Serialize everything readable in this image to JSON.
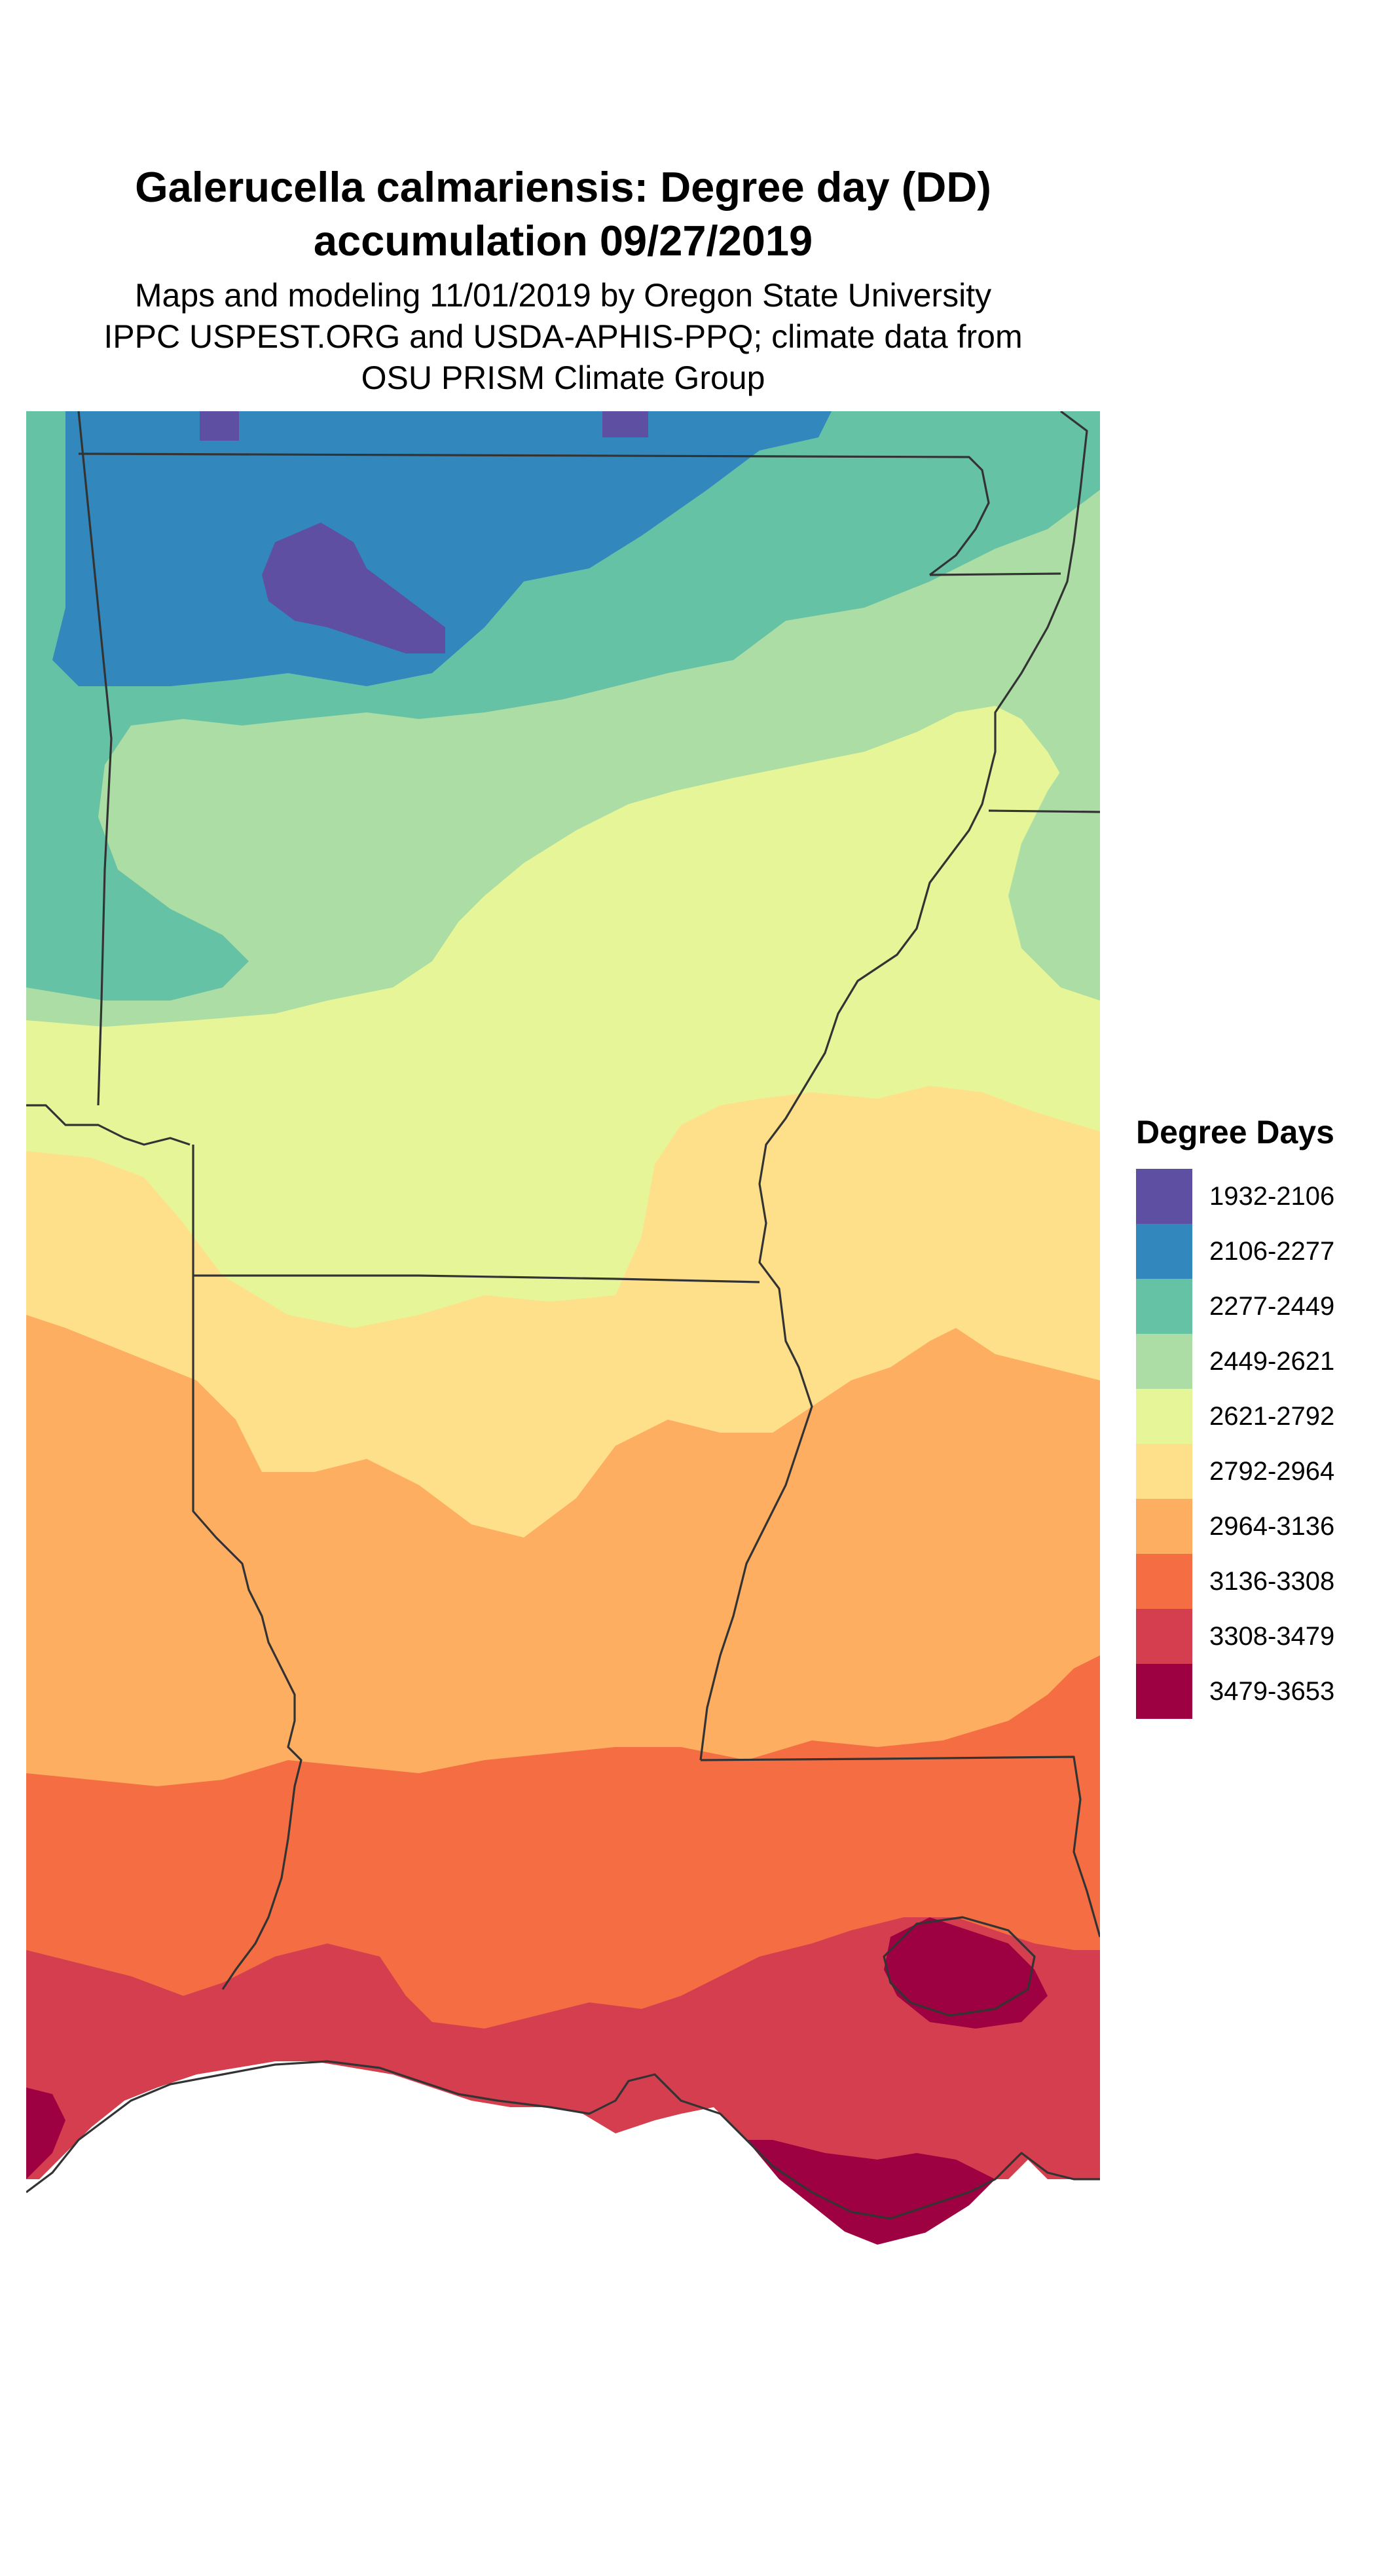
{
  "title": {
    "line1": "Galerucella calmariensis: Degree day (DD)",
    "line2": "accumulation 09/27/2019"
  },
  "subtitle": {
    "line1": "Maps and modeling 11/01/2019 by Oregon State University",
    "line2": "IPPC USPEST.ORG and USDA-APHIS-PPQ; climate data from",
    "line3": "OSU PRISM Climate Group"
  },
  "legend": {
    "title": "Degree Days",
    "items": [
      {
        "label": "1932-2106",
        "color": "#5E4FA2"
      },
      {
        "label": "2106-2277",
        "color": "#3288BD"
      },
      {
        "label": "2277-2449",
        "color": "#66C2A5"
      },
      {
        "label": "2449-2621",
        "color": "#ABDDA4"
      },
      {
        "label": "2621-2792",
        "color": "#E6F598"
      },
      {
        "label": "2792-2964",
        "color": "#FEE08B"
      },
      {
        "label": "2964-3136",
        "color": "#FDAE61"
      },
      {
        "label": "3136-3308",
        "color": "#F46D43"
      },
      {
        "label": "3308-3479",
        "color": "#D53E4F"
      },
      {
        "label": "3479-3653",
        "color": "#9E0142"
      }
    ]
  }
}
